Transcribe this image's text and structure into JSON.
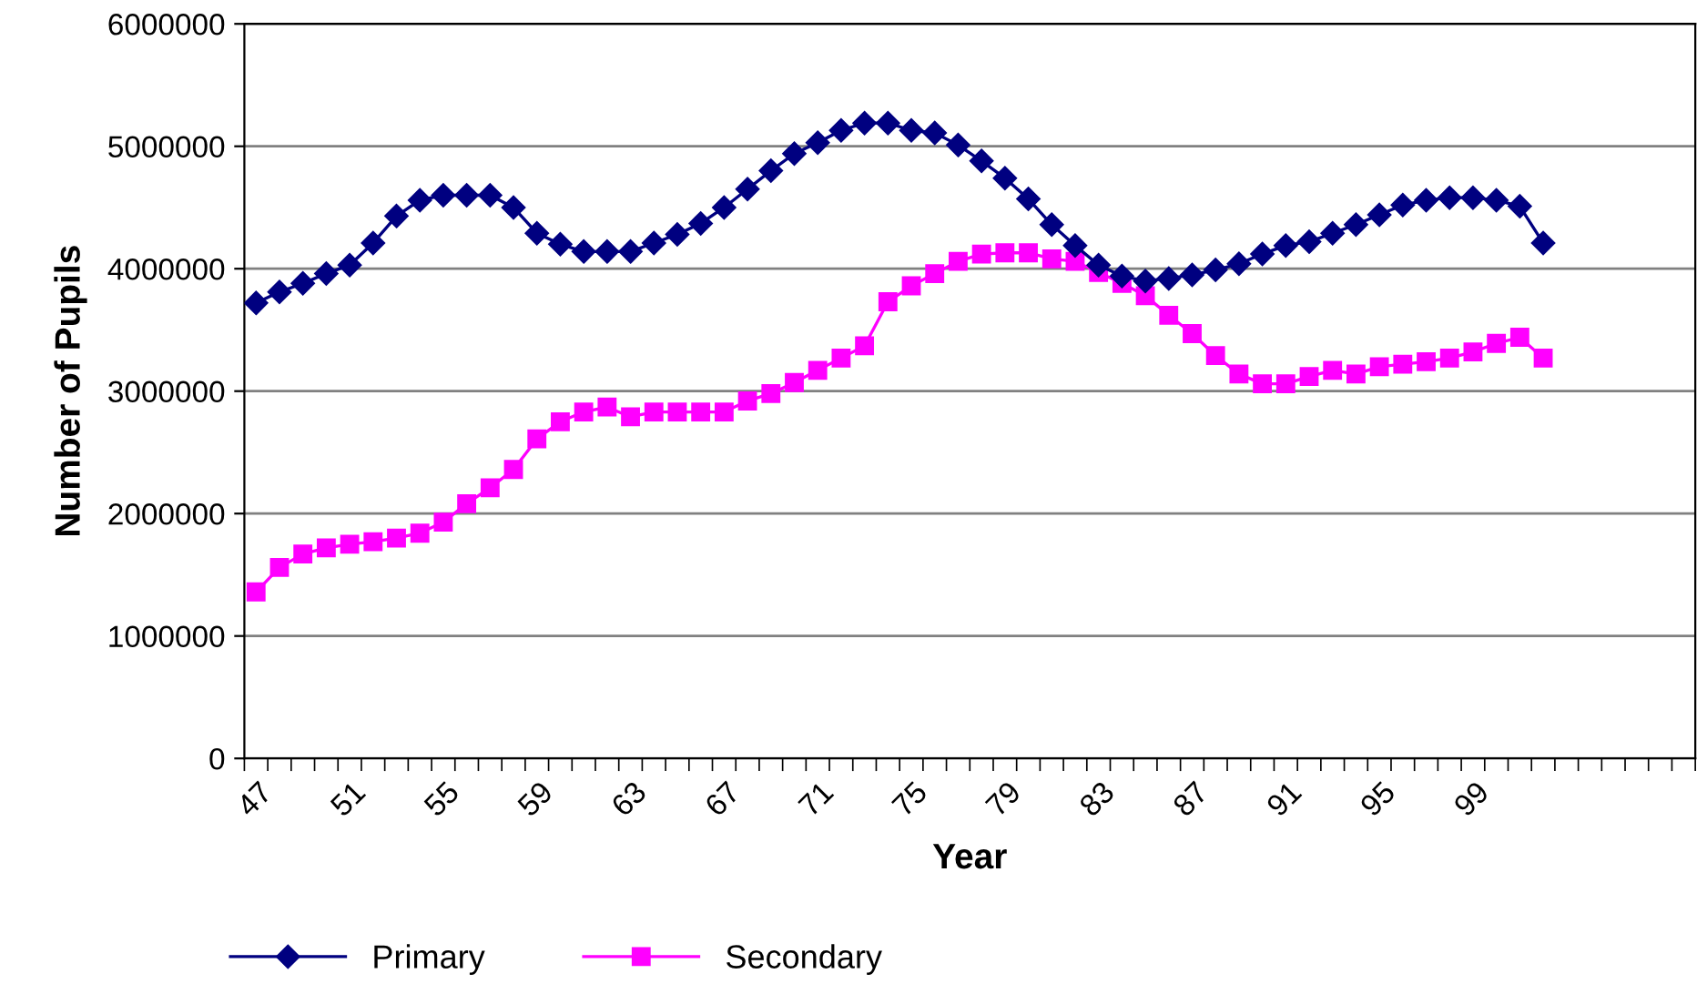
{
  "chart_data": {
    "type": "line",
    "xlabel": "Year",
    "ylabel": "Number of Pupils",
    "categories": [
      "47",
      null,
      null,
      null,
      "51",
      null,
      null,
      null,
      "55",
      null,
      null,
      null,
      "59",
      null,
      null,
      null,
      "63",
      null,
      null,
      null,
      "67",
      null,
      null,
      null,
      "71",
      null,
      null,
      null,
      "75",
      null,
      null,
      null,
      "79",
      null,
      null,
      null,
      "83",
      null,
      null,
      null,
      "87",
      null,
      null,
      null,
      "91",
      null,
      null,
      null,
      "95",
      null,
      null,
      null,
      "99",
      null,
      null,
      null,
      null,
      null,
      null,
      null,
      null,
      null
    ],
    "series": [
      {
        "name": "Primary",
        "color": "#000080",
        "marker": "diamond",
        "values": [
          3720000,
          3810000,
          3880000,
          3960000,
          4030000,
          4210000,
          4430000,
          4560000,
          4600000,
          4600000,
          4600000,
          4500000,
          4290000,
          4200000,
          4140000,
          4140000,
          4140000,
          4210000,
          4280000,
          4370000,
          4500000,
          4650000,
          4800000,
          4940000,
          5030000,
          5130000,
          5190000,
          5190000,
          5130000,
          5110000,
          5010000,
          4880000,
          4740000,
          4570000,
          4360000,
          4190000,
          4030000,
          3940000,
          3900000,
          3920000,
          3950000,
          3990000,
          4040000,
          4120000,
          4190000,
          4220000,
          4290000,
          4360000,
          4440000,
          4520000,
          4560000,
          4580000,
          4580000,
          4560000,
          4510000,
          4210000,
          null,
          null,
          null,
          null,
          null,
          null
        ]
      },
      {
        "name": "Secondary",
        "color": "#ff00ff",
        "marker": "square",
        "values": [
          1360000,
          1560000,
          1670000,
          1720000,
          1750000,
          1770000,
          1800000,
          1840000,
          1930000,
          2080000,
          2210000,
          2360000,
          2610000,
          2750000,
          2830000,
          2870000,
          2790000,
          2830000,
          2830000,
          2830000,
          2830000,
          2920000,
          2980000,
          3070000,
          3170000,
          3270000,
          3370000,
          3730000,
          3860000,
          3960000,
          4060000,
          4120000,
          4130000,
          4130000,
          4080000,
          4060000,
          3970000,
          3880000,
          3780000,
          3620000,
          3470000,
          3290000,
          3140000,
          3060000,
          3060000,
          3120000,
          3170000,
          3140000,
          3200000,
          3220000,
          3240000,
          3270000,
          3320000,
          3390000,
          3440000,
          3270000,
          null,
          null,
          null,
          null,
          null,
          null
        ]
      }
    ],
    "ylim": [
      0,
      6000000
    ],
    "yticks": [
      0,
      1000000,
      2000000,
      3000000,
      4000000,
      5000000,
      6000000
    ],
    "grid": "y",
    "legend": "bottom left",
    "line_style": "solid"
  }
}
